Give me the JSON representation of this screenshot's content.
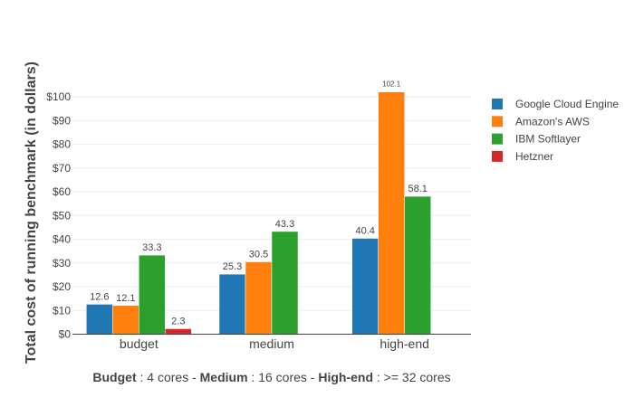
{
  "chart_data": {
    "type": "bar",
    "categories": [
      "budget",
      "medium",
      "high-end"
    ],
    "series": [
      {
        "name": "Google Cloud Engine",
        "color": "#1f77b4",
        "values": [
          12.6,
          25.3,
          40.4
        ],
        "labels": [
          "12.6",
          "25.3",
          "40.4"
        ]
      },
      {
        "name": "Amazon's AWS",
        "color": "#ff7f0e",
        "values": [
          12.1,
          30.5,
          102.1
        ],
        "labels": [
          "12.1",
          "30.5",
          "102.1"
        ]
      },
      {
        "name": "IBM Softlayer",
        "color": "#2ca02c",
        "values": [
          33.3,
          43.3,
          58.1
        ],
        "labels": [
          "33.3",
          "43.3",
          "58.1"
        ]
      },
      {
        "name": "Hetzner",
        "color": "#d62728",
        "values": [
          2.3,
          null,
          null
        ],
        "labels": [
          "2.3",
          "",
          ""
        ]
      }
    ],
    "ylabel": "Total cost of running benchmark (in dollars)",
    "xlabel": {
      "budget_bold": "Budget",
      "budget_text": " : 4 cores - ",
      "medium_bold": "Medium",
      "medium_text": " : 16 cores - ",
      "highend_bold": "High-end",
      "highend_text": " : >= 32 cores"
    },
    "yticks": [
      {
        "value": 0,
        "label": "$0"
      },
      {
        "value": 10,
        "label": "$10"
      },
      {
        "value": 20,
        "label": "$20"
      },
      {
        "value": 30,
        "label": "$30"
      },
      {
        "value": 40,
        "label": "$40"
      },
      {
        "value": 50,
        "label": "$50"
      },
      {
        "value": 60,
        "label": "$60"
      },
      {
        "value": 70,
        "label": "$70"
      },
      {
        "value": 80,
        "label": "$80"
      },
      {
        "value": 90,
        "label": "$90"
      },
      {
        "value": 100,
        "label": "$100"
      }
    ],
    "ylim": [
      0,
      107.5
    ],
    "grid": true,
    "legend_position": "right"
  }
}
